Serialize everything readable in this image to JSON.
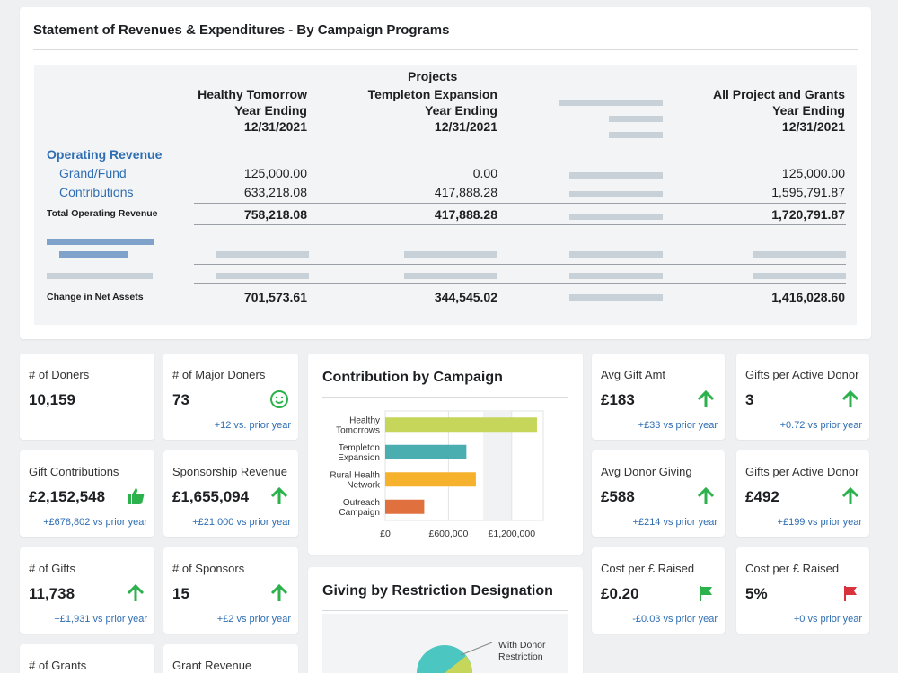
{
  "statement": {
    "title": "Statement of Revenues & Expenditures - By Campaign Programs",
    "projects_header": "Projects",
    "columns": [
      {
        "name": "Healthy Tomorrow",
        "line2": "Year Ending",
        "line3": "12/31/2021"
      },
      {
        "name": "Templeton Expansion",
        "line2": "Year Ending",
        "line3": "12/31/2021"
      },
      {
        "name": "All Project and Grants",
        "line2": "Year Ending",
        "line3": "12/31/2021"
      }
    ],
    "operating_revenue_label": "Operating Revenue",
    "rows": [
      {
        "label": "Grand/Fund",
        "values": [
          "125,000.00",
          "0.00",
          "125,000.00"
        ]
      },
      {
        "label": "Contributions",
        "values": [
          "633,218.08",
          "417,888.28",
          "1,595,791.87"
        ]
      }
    ],
    "total_row": {
      "label": "Total Operating Revenue",
      "values": [
        "758,218.08",
        "417,888.28",
        "1,720,791.87"
      ]
    },
    "net_row": {
      "label": "Change in Net Assets",
      "values": [
        "701,573.61",
        "344,545.02",
        "1,416,028.60"
      ]
    }
  },
  "cards": {
    "doners": {
      "label": "# of Doners",
      "value": "10,159",
      "sub": ""
    },
    "major_doners": {
      "label": "# of Major Doners",
      "value": "73",
      "sub": "+12 vs. prior year",
      "icon": "smiley-icon"
    },
    "gift_contrib": {
      "label": "Gift Contributions",
      "value": "£2,152,548",
      "sub": "+£678,802 vs prior year",
      "icon": "thumbs-up-icon"
    },
    "sponsorship": {
      "label": "Sponsorship Revenue",
      "value": "£1,655,094",
      "sub": "+£21,000 vs prior year",
      "icon": "arrow-up-icon"
    },
    "gifts": {
      "label": "# of Gifts",
      "value": "11,738",
      "sub": "+£1,931 vs prior year",
      "icon": "arrow-up-icon"
    },
    "sponsors": {
      "label": "# of Sponsors",
      "value": "15",
      "sub": "+£2 vs prior year",
      "icon": "arrow-up-icon"
    },
    "grants": {
      "label": "# of Grants"
    },
    "grant_revenue": {
      "label": "Grant Revenue"
    },
    "avg_gift": {
      "label": "Avg Gift Amt",
      "value": "£183",
      "sub": "+£33 vs prior year",
      "icon": "arrow-up-icon"
    },
    "gifts_active_1": {
      "label": "Gifts per Active Donor",
      "value": "3",
      "sub": "+0.72 vs prior year",
      "icon": "arrow-up-icon"
    },
    "avg_donor": {
      "label": "Avg Donor Giving",
      "value": "£588",
      "sub": "+£214 vs prior year",
      "icon": "arrow-up-icon"
    },
    "gifts_active_2": {
      "label": "Gifts per Active Donor",
      "value": "£492",
      "sub": "+£199 vs prior year",
      "icon": "arrow-up-icon"
    },
    "cost_1": {
      "label": "Cost per £ Raised",
      "value": "£0.20",
      "sub": "-£0.03 vs prior year",
      "icon": "flag-green-icon"
    },
    "cost_2": {
      "label": "Cost per £ Raised",
      "value": "5%",
      "sub": "+0 vs prior year",
      "icon": "flag-red-icon"
    }
  },
  "colors": {
    "green": "#2bb24c",
    "blue": "#2f6eb3",
    "red": "#d8323c"
  },
  "chart_data": [
    {
      "type": "bar",
      "orientation": "horizontal",
      "title": "Contribution by Campaign",
      "categories": [
        "Healthy Tomorrows",
        "Templeton Expansion",
        "Rural Health Network",
        "Outreach Campaign"
      ],
      "category_lines": [
        [
          "Healthy",
          "Tomorrows"
        ],
        [
          "Templeton",
          "Expansion"
        ],
        [
          "Rural Health",
          "Network"
        ],
        [
          "Outreach",
          "Campaign"
        ]
      ],
      "values": [
        1440000,
        770000,
        860000,
        370000
      ],
      "colors": [
        "#c5d65a",
        "#4aaeb0",
        "#f6b12d",
        "#e0703e"
      ],
      "xlim": [
        0,
        1500000
      ],
      "tick_labels": [
        "£0",
        "£600,000",
        "£1,200,000"
      ],
      "ticks": [
        0,
        600000,
        1200000
      ]
    },
    {
      "type": "pie",
      "title": "Giving by Restriction Designation",
      "labels": [
        "With Donor Restriction"
      ],
      "colors": [
        "#4cc6c0",
        "#c5d65a"
      ]
    }
  ]
}
